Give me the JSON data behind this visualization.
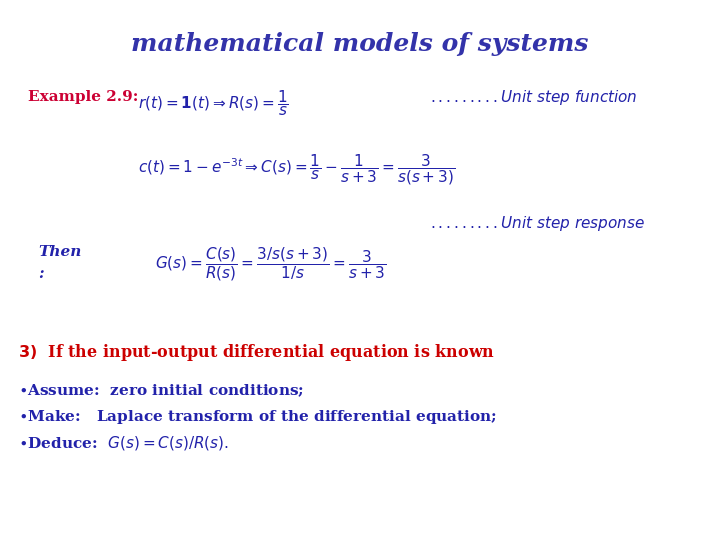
{
  "title": "mathematical models of systems",
  "title_color": "#3333aa",
  "title_fontsize": 18,
  "background_color": "#ffffff",
  "example_label": "Example 2.9:",
  "example_label_color": "#cc0033",
  "navy": "#2222aa",
  "red": "#cc0000"
}
